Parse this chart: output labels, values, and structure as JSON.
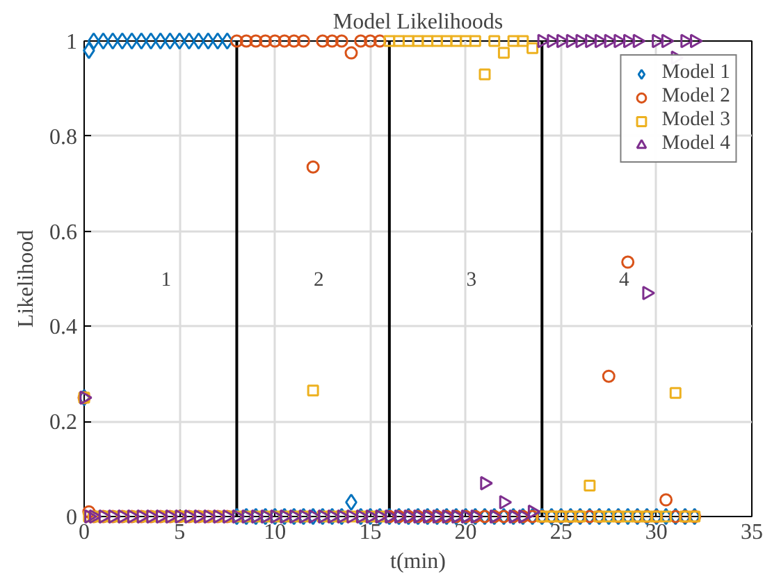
{
  "chart_data": {
    "type": "scatter",
    "title": "Model Likelihoods",
    "xlabel": "t(min)",
    "ylabel": "Likelihood",
    "x": [
      0,
      0.25,
      0.5,
      1,
      1.5,
      2,
      2.5,
      3,
      3.5,
      4,
      4.5,
      5,
      5.5,
      6,
      6.5,
      7,
      7.5,
      8,
      8.5,
      9,
      9.5,
      10,
      10.5,
      11,
      11.5,
      12,
      12.5,
      13,
      13.5,
      14,
      14.5,
      15,
      15.5,
      16,
      16.5,
      17,
      17.5,
      18,
      18.5,
      19,
      19.5,
      20,
      20.5,
      21,
      21.5,
      22,
      22.5,
      23,
      23.5,
      24,
      24.5,
      25,
      25.5,
      26,
      26.5,
      27,
      27.5,
      28,
      28.5,
      29,
      29.5,
      30,
      30.5,
      31,
      31.5,
      32
    ],
    "series": [
      {
        "name": "Model 1",
        "color": "#0072bd",
        "marker": "diamond",
        "values": [
          0.25,
          0.98,
          1,
          1,
          1,
          1,
          1,
          1,
          1,
          1,
          1,
          1,
          1,
          1,
          1,
          1,
          1,
          0,
          0,
          0,
          0,
          0,
          0,
          0,
          0,
          0,
          0,
          0,
          0,
          0.03,
          0,
          0,
          0,
          0,
          0,
          0,
          0,
          0,
          0,
          0,
          0,
          0,
          0,
          0,
          0,
          0,
          0,
          0,
          0,
          0,
          0,
          0,
          0,
          0,
          0,
          0,
          0,
          0,
          0,
          0,
          0,
          0,
          0,
          0,
          0,
          0
        ]
      },
      {
        "name": "Model 2",
        "color": "#d95319",
        "marker": "circle",
        "values": [
          0.25,
          0.01,
          0,
          0,
          0,
          0,
          0,
          0,
          0,
          0,
          0,
          0,
          0,
          0,
          0,
          0,
          0,
          1,
          1,
          1,
          1,
          1,
          1,
          1,
          1,
          0.735,
          1,
          1,
          1,
          0.975,
          1,
          1,
          1,
          0,
          0,
          0,
          0,
          0,
          0,
          0,
          0,
          0,
          0,
          0,
          0,
          0,
          0,
          0,
          0,
          0,
          0,
          0,
          0,
          0,
          0,
          0,
          0.295,
          0,
          0.535,
          0,
          0,
          0,
          0.035,
          0,
          0,
          0
        ]
      },
      {
        "name": "Model 3",
        "color": "#edb120",
        "marker": "square",
        "values": [
          0.25,
          0,
          0,
          0,
          0,
          0,
          0,
          0,
          0,
          0,
          0,
          0,
          0,
          0,
          0,
          0,
          0,
          0,
          0,
          0,
          0,
          0,
          0,
          0,
          0,
          0.265,
          0,
          0,
          0,
          0,
          0,
          0,
          0,
          1,
          1,
          1,
          1,
          1,
          1,
          1,
          1,
          1,
          1,
          0.93,
          1,
          0.975,
          1,
          1,
          0.985,
          0,
          0,
          0,
          0,
          0,
          0.065,
          0,
          0,
          0,
          0,
          0,
          0,
          0,
          0,
          0.26,
          0,
          0
        ]
      },
      {
        "name": "Model 4",
        "color": "#7e2f8e",
        "marker": "triangle",
        "values": [
          0.25,
          0,
          0,
          0,
          0,
          0,
          0,
          0,
          0,
          0,
          0,
          0,
          0,
          0,
          0,
          0,
          0,
          0,
          0,
          0,
          0,
          0,
          0,
          0,
          0,
          0,
          0,
          0,
          0,
          0,
          0,
          0,
          0,
          0,
          0,
          0,
          0,
          0,
          0,
          0,
          0,
          0,
          0,
          0.07,
          0,
          0.03,
          0,
          0,
          0.01,
          1,
          1,
          1,
          1,
          1,
          1,
          1,
          1,
          1,
          1,
          1,
          0.47,
          1,
          1,
          0.965,
          1,
          1
        ]
      }
    ],
    "xlim": [
      0,
      35
    ],
    "xticks": [
      0,
      5,
      10,
      15,
      20,
      25,
      30,
      35
    ],
    "ylim": [
      0,
      1
    ],
    "yticks": [
      0,
      0.2,
      0.4,
      0.6,
      0.8,
      1
    ],
    "ref_lines": [
      {
        "axis": "x",
        "value": 8,
        "color": "#000000"
      },
      {
        "axis": "x",
        "value": 16,
        "color": "#000000"
      },
      {
        "axis": "x",
        "value": 24,
        "color": "#000000"
      }
    ],
    "annotations": [
      "1",
      "2",
      "3",
      "4"
    ],
    "grid": true,
    "legend": "top right"
  }
}
